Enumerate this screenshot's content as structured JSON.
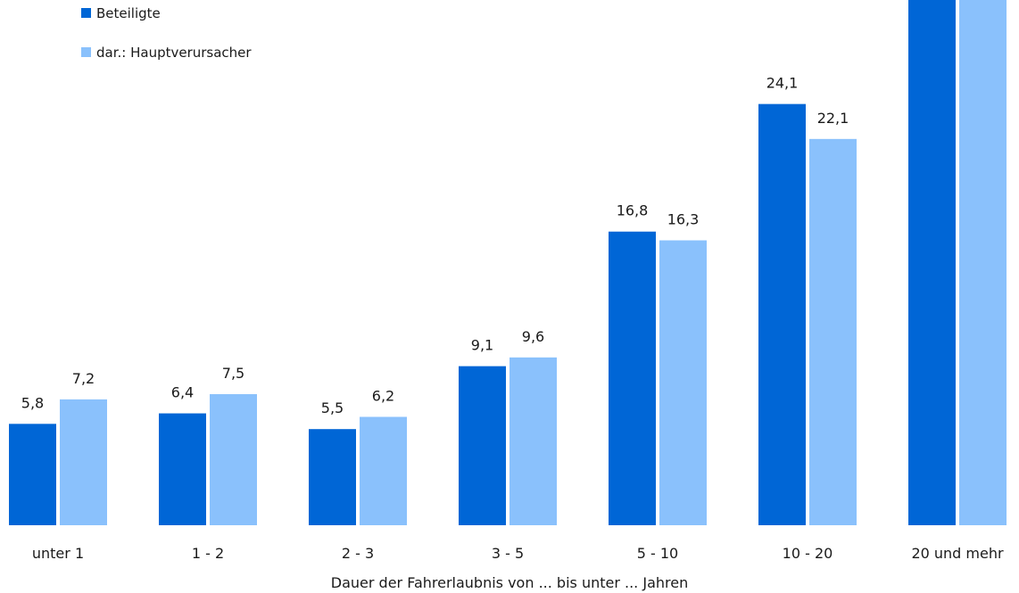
{
  "chart_data": {
    "type": "bar",
    "xlabel": "Dauer der Fahrerlaubnis von ... bis unter ... Jahren",
    "categories": [
      "unter 1",
      "1 - 2",
      "2 - 3",
      "3 - 5",
      "5 - 10",
      "10 - 20",
      "20 und mehr"
    ],
    "series": [
      {
        "name": "Beteiligte",
        "color": "#0066d6",
        "values": [
          5.8,
          6.4,
          5.5,
          9.1,
          16.8,
          24.1,
          32.5
        ]
      },
      {
        "name": "dar.: Hauptverursacher",
        "color": "#8ac1fc",
        "values": [
          7.2,
          7.5,
          6.2,
          9.6,
          16.3,
          22.1,
          31.1
        ]
      }
    ],
    "value_labels": [
      [
        "5,8",
        "6,4",
        "5,5",
        "9,1",
        "16,8",
        "24,1",
        ""
      ],
      [
        "7,2",
        "7,5",
        "6,2",
        "9,6",
        "16,3",
        "22,1",
        ""
      ]
    ],
    "legend_position": "top-left",
    "grid": false
  }
}
